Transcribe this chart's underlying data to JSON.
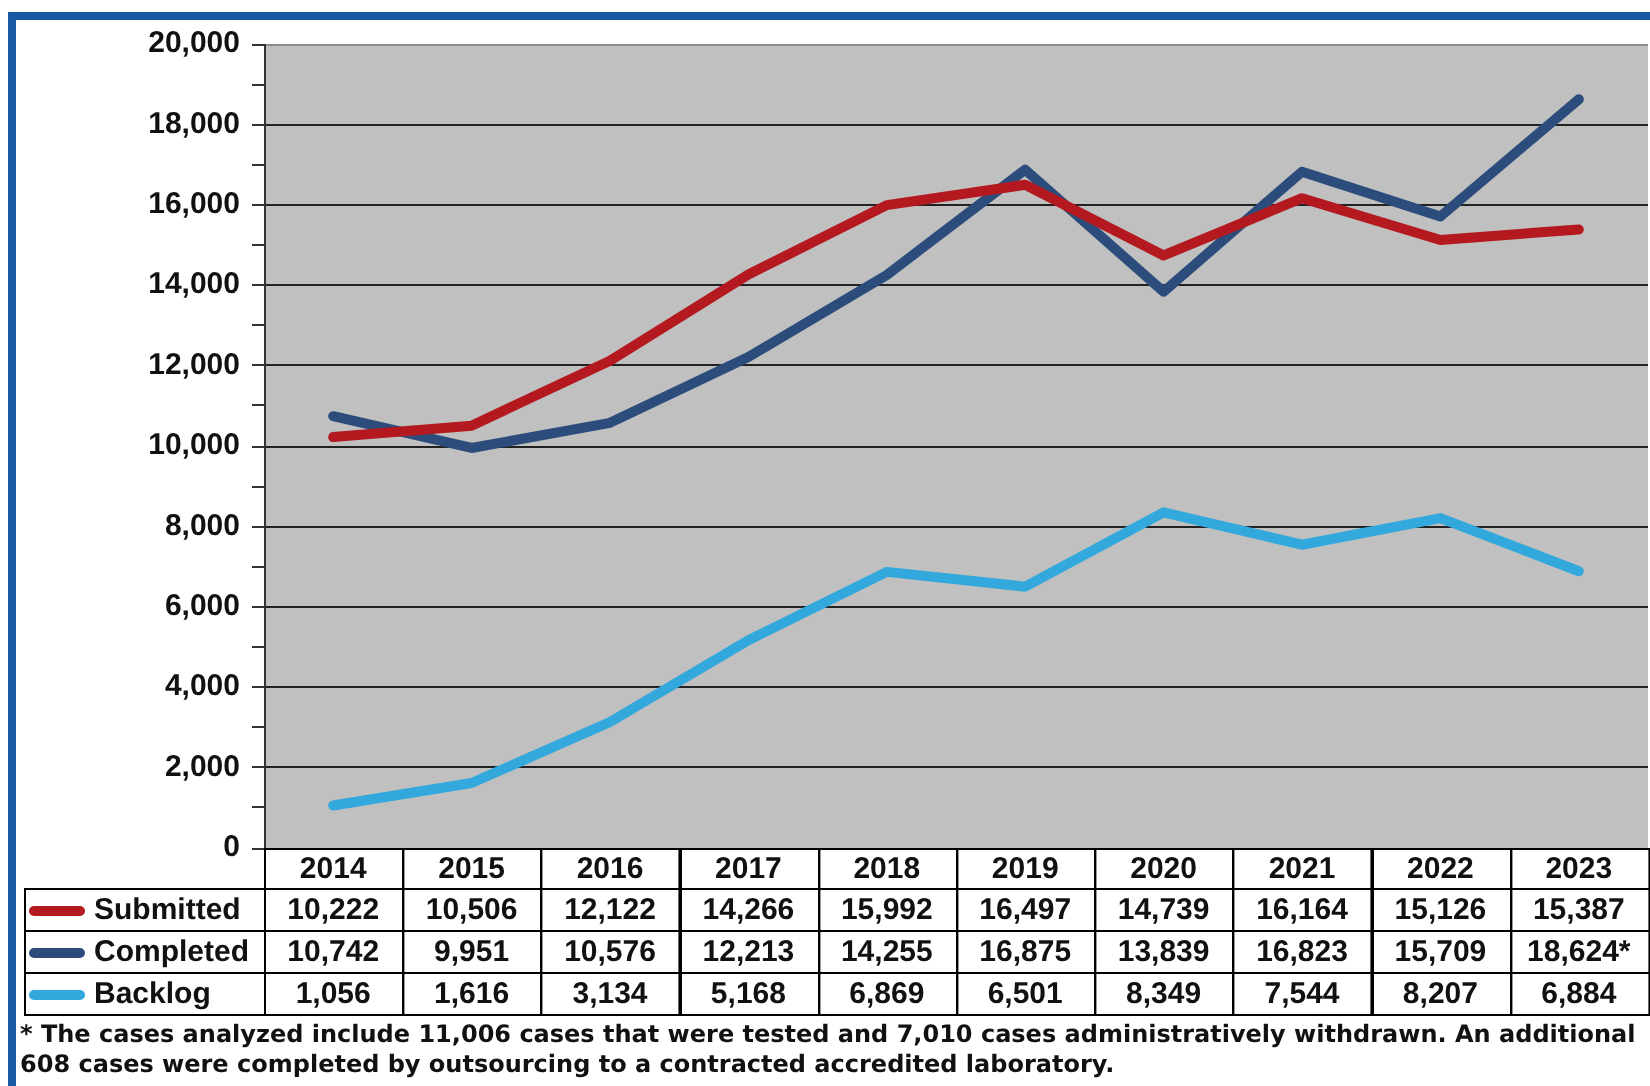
{
  "chart_data": {
    "type": "line",
    "categories": [
      "2014",
      "2015",
      "2016",
      "2017",
      "2018",
      "2019",
      "2020",
      "2021",
      "2022",
      "2023"
    ],
    "series": [
      {
        "name": "Submitted",
        "color": "#b3191f",
        "values": [
          10222,
          10506,
          12122,
          14266,
          15992,
          16497,
          14739,
          16164,
          15126,
          15387
        ],
        "value_labels": [
          "10,222",
          "10,506",
          "12,122",
          "14,266",
          "15,992",
          "16,497",
          "14,739",
          "16,164",
          "15,126",
          "15,387"
        ]
      },
      {
        "name": "Completed",
        "color": "#2c4d7c",
        "values": [
          10742,
          9951,
          10576,
          12213,
          14255,
          16875,
          13839,
          16823,
          15709,
          18624
        ],
        "value_labels": [
          "10,742",
          "9,951",
          "10,576",
          "12,213",
          "14,255",
          "16,875",
          "13,839",
          "16,823",
          "15,709",
          "18,624*"
        ]
      },
      {
        "name": "Backlog",
        "color": "#33a8dc",
        "values": [
          1056,
          1616,
          3134,
          5168,
          6869,
          6501,
          8349,
          7544,
          8207,
          6884
        ],
        "value_labels": [
          "1,056",
          "1,616",
          "3,134",
          "5,168",
          "6,869",
          "6,501",
          "8,349",
          "7,544",
          "8,207",
          "6,884"
        ]
      }
    ],
    "ylim": [
      0,
      20000
    ],
    "yticks": [
      0,
      {
        "value": 1000,
        "label": null
      },
      {
        "value": 2000,
        "label": "2,000"
      },
      {
        "value": 3000,
        "label": null
      },
      {
        "value": 4000,
        "label": "4,000"
      },
      {
        "value": 5000,
        "label": null
      },
      {
        "value": 6000,
        "label": "6,000"
      },
      {
        "value": 7000,
        "label": null
      },
      {
        "value": 8000,
        "label": "8,000"
      },
      {
        "value": 9000,
        "label": null
      },
      {
        "value": 10000,
        "label": "10,000"
      },
      {
        "value": 11000,
        "label": null
      },
      {
        "value": 12000,
        "label": "12,000"
      },
      {
        "value": 13000,
        "label": null
      },
      {
        "value": 14000,
        "label": "14,000"
      },
      {
        "value": 15000,
        "label": null
      },
      {
        "value": 16000,
        "label": "16,000"
      },
      {
        "value": 17000,
        "label": null
      },
      {
        "value": 18000,
        "label": "18,000"
      },
      {
        "value": 19000,
        "label": null
      },
      {
        "value": 20000,
        "label": "20,000"
      }
    ],
    "grid": "y",
    "legend": "bottom left",
    "annotations": [
      "* The cases analyzed include 11,006 cases that were tested and 7,010 cases administratively withdrawn. An additional 608 cases were completed by outsourcing to a contracted accredited laboratory."
    ]
  }
}
